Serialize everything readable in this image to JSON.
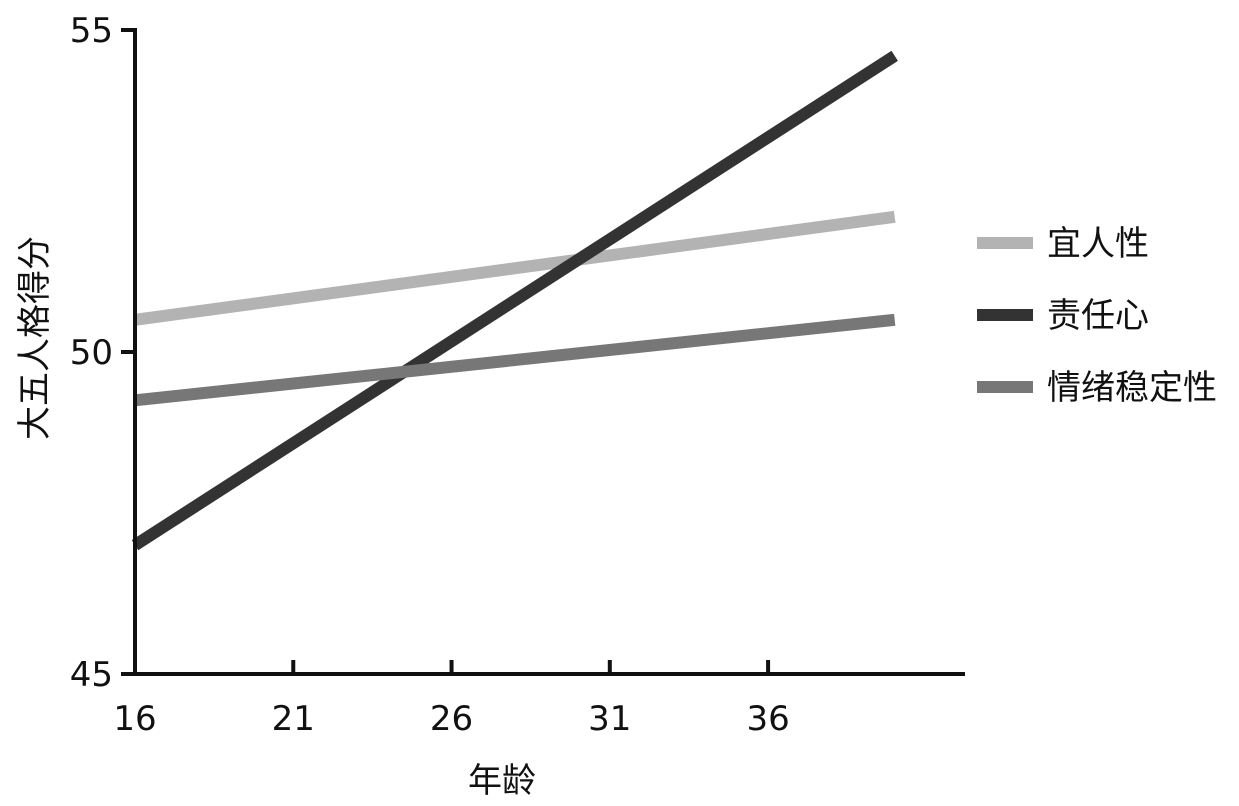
{
  "chart_data": {
    "type": "line",
    "title": "",
    "xlabel": "年龄",
    "ylabel": "大五人格得分",
    "x": [
      16,
      40
    ],
    "xticks": [
      16,
      21,
      26,
      31,
      36
    ],
    "xlim": [
      16,
      42
    ],
    "yticks": [
      45,
      50,
      55
    ],
    "ylim": [
      45,
      55
    ],
    "grid": false,
    "legend_position": "right",
    "series": [
      {
        "name": "宜人性",
        "color": "#b3b3b3",
        "values": [
          50.5,
          52.1
        ]
      },
      {
        "name": "责任心",
        "color": "#333333",
        "values": [
          47.0,
          54.6
        ]
      },
      {
        "name": "情绪稳定性",
        "color": "#777777",
        "values": [
          49.25,
          50.5
        ]
      }
    ]
  }
}
